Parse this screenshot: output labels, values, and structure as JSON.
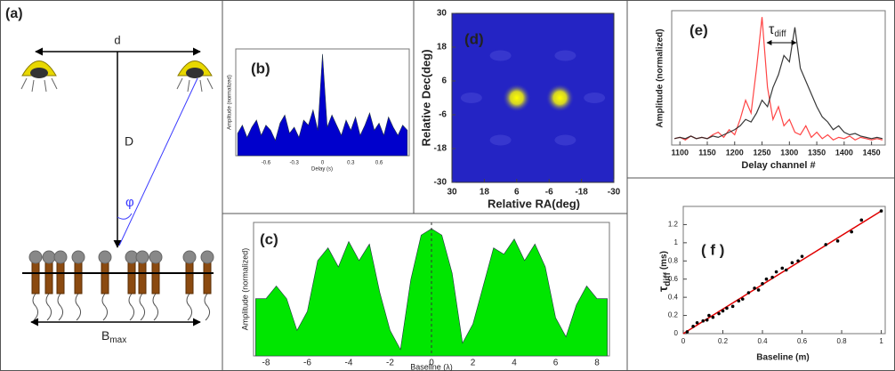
{
  "diagram": {
    "label": "(a)",
    "d": "d",
    "D": "D",
    "phi": "φ",
    "bmax": "B",
    "bmax_sub": "max"
  },
  "chart_data": [
    {
      "type": "area",
      "label": "(b)",
      "x_label": "Delay (s)",
      "y_label": "Amplitude (normalized)",
      "x": [
        -0.9,
        -0.85,
        -0.8,
        -0.75,
        -0.7,
        -0.65,
        -0.6,
        -0.55,
        -0.5,
        -0.45,
        -0.4,
        -0.35,
        -0.3,
        -0.25,
        -0.2,
        -0.15,
        -0.1,
        -0.05,
        0,
        0.05,
        0.1,
        0.15,
        0.2,
        0.25,
        0.3,
        0.35,
        0.4,
        0.45,
        0.5,
        0.55,
        0.6,
        0.65,
        0.7,
        0.75,
        0.8,
        0.85,
        0.9
      ],
      "values": [
        0.22,
        0.3,
        0.18,
        0.28,
        0.35,
        0.2,
        0.3,
        0.25,
        0.15,
        0.32,
        0.4,
        0.22,
        0.28,
        0.18,
        0.35,
        0.3,
        0.45,
        0.25,
        1.0,
        0.28,
        0.4,
        0.3,
        0.2,
        0.35,
        0.25,
        0.38,
        0.2,
        0.3,
        0.42,
        0.25,
        0.32,
        0.2,
        0.38,
        0.28,
        0.2,
        0.3,
        0.25
      ],
      "color": "#0000cc",
      "xlim": [
        -0.92,
        0.92
      ],
      "ylim": [
        0,
        1.05
      ],
      "xticks": [
        -0.6,
        -0.3,
        0,
        0.3,
        0.6
      ]
    },
    {
      "type": "area",
      "label": "(c)",
      "x_label": "Baseline (λ)",
      "y_label": "Amplitude (normalized)",
      "x": [
        -8.5,
        -8,
        -7.5,
        -7,
        -6.5,
        -6,
        -5.5,
        -5,
        -4.5,
        -4,
        -3.5,
        -3,
        -2.5,
        -2,
        -1.5,
        -1,
        -0.5,
        0,
        0.5,
        1,
        1.5,
        2,
        2.5,
        3,
        3.5,
        4,
        4.5,
        5,
        5.5,
        6,
        6.5,
        7,
        7.5,
        8,
        8.5
      ],
      "values": [
        0.45,
        0.45,
        0.55,
        0.45,
        0.2,
        0.35,
        0.75,
        0.85,
        0.7,
        0.9,
        0.75,
        0.88,
        0.5,
        0.2,
        0.05,
        0.6,
        0.95,
        1.0,
        0.95,
        0.65,
        0.1,
        0.25,
        0.55,
        0.85,
        0.8,
        0.92,
        0.75,
        0.88,
        0.7,
        0.3,
        0.15,
        0.4,
        0.55,
        0.45,
        0.45
      ],
      "color": "#00e600",
      "xlim": [
        -8.6,
        8.6
      ],
      "ylim": [
        0,
        1.05
      ],
      "xticks": [
        -8,
        -6,
        -4,
        -2,
        0,
        2,
        4,
        6,
        8
      ],
      "vline": 0
    },
    {
      "type": "heatmap",
      "label": "(d)",
      "x_label": "Relative RA(deg)",
      "y_label": "Relative Dec(deg)",
      "xlim": [
        30,
        -30
      ],
      "ylim": [
        -30,
        30
      ],
      "xticks": [
        30,
        18,
        6,
        -6,
        -18,
        -30
      ],
      "yticks": [
        30,
        18,
        6,
        -6,
        -18,
        -30
      ],
      "sources": {
        "x": [
          6,
          -10
        ],
        "y": [
          0,
          0
        ]
      },
      "color": "#ffff00",
      "background": "#2424c4"
    },
    {
      "type": "line",
      "label": "(e)",
      "x_label": "Delay channel #",
      "y_label": "Amplitude (normalized)",
      "annotation": {
        "text": "τ",
        "sub": "diff"
      },
      "x": [
        1090,
        1100,
        1110,
        1120,
        1130,
        1140,
        1150,
        1160,
        1170,
        1180,
        1190,
        1200,
        1210,
        1220,
        1230,
        1240,
        1250,
        1260,
        1270,
        1280,
        1290,
        1300,
        1310,
        1320,
        1330,
        1340,
        1350,
        1360,
        1370,
        1380,
        1390,
        1400,
        1410,
        1420,
        1430,
        1440,
        1450,
        1460,
        1470
      ],
      "series": [
        {
          "color": "#ff3030",
          "values": [
            0.05,
            0.06,
            0.04,
            0.07,
            0.05,
            0.06,
            0.05,
            0.08,
            0.1,
            0.06,
            0.12,
            0.08,
            0.2,
            0.35,
            0.25,
            0.6,
            1.0,
            0.45,
            0.2,
            0.3,
            0.15,
            0.2,
            0.1,
            0.08,
            0.15,
            0.06,
            0.1,
            0.05,
            0.08,
            0.04,
            0.06,
            0.05,
            0.07,
            0.04,
            0.06,
            0.05,
            0.04,
            0.05,
            0.04
          ]
        },
        {
          "color": "#222222",
          "values": [
            0.05,
            0.06,
            0.05,
            0.07,
            0.05,
            0.06,
            0.05,
            0.07,
            0.06,
            0.08,
            0.1,
            0.12,
            0.15,
            0.2,
            0.18,
            0.25,
            0.35,
            0.3,
            0.45,
            0.55,
            0.7,
            0.65,
            0.92,
            0.6,
            0.5,
            0.4,
            0.3,
            0.22,
            0.18,
            0.12,
            0.15,
            0.1,
            0.08,
            0.09,
            0.07,
            0.06,
            0.05,
            0.06,
            0.05
          ]
        }
      ],
      "xlim": [
        1085,
        1475
      ],
      "ylim": [
        0,
        1.05
      ],
      "xticks": [
        1100,
        1150,
        1200,
        1250,
        1300,
        1350,
        1400,
        1450
      ]
    },
    {
      "type": "scatter",
      "label": "( f )",
      "x_label": "Baseline (m)",
      "y_label": {
        "text": "τ",
        "sub": "diff",
        "unit": "(ms)"
      },
      "x": [
        0.02,
        0.05,
        0.07,
        0.1,
        0.12,
        0.13,
        0.15,
        0.18,
        0.2,
        0.22,
        0.25,
        0.28,
        0.3,
        0.33,
        0.36,
        0.38,
        0.4,
        0.42,
        0.45,
        0.47,
        0.5,
        0.52,
        0.55,
        0.58,
        0.6,
        0.72,
        0.78,
        0.85,
        0.9,
        1.0
      ],
      "values": [
        0.02,
        0.08,
        0.12,
        0.14,
        0.15,
        0.2,
        0.18,
        0.22,
        0.25,
        0.28,
        0.3,
        0.36,
        0.38,
        0.45,
        0.5,
        0.48,
        0.55,
        0.6,
        0.62,
        0.68,
        0.72,
        0.7,
        0.78,
        0.8,
        0.85,
        0.98,
        1.02,
        1.12,
        1.25,
        1.35
      ],
      "color": "#000000",
      "fit": {
        "x": [
          0,
          1
        ],
        "values": [
          0,
          1.35
        ],
        "color": "#e00000"
      },
      "xlim": [
        0,
        1.02
      ],
      "ylim": [
        0,
        1.4
      ],
      "xticks": [
        0,
        0.2,
        0.4,
        0.6,
        0.8,
        1
      ],
      "yticks": [
        0,
        0.2,
        0.4,
        0.6,
        0.8,
        1,
        1.2
      ]
    }
  ]
}
